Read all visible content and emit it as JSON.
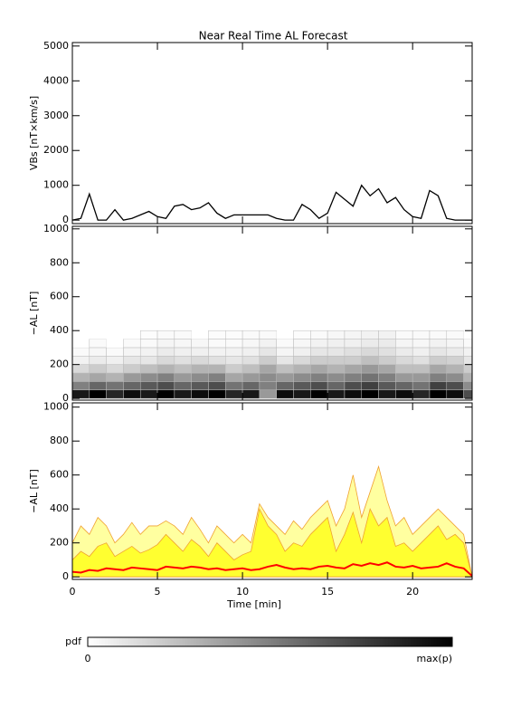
{
  "chart_data": [
    {
      "type": "line",
      "title": "Near Real Time AL Forecast",
      "ylabel": "VBs [nT×km/s]",
      "x": [
        0,
        0.5,
        1,
        1.5,
        2,
        2.5,
        3,
        3.5,
        4,
        4.5,
        5,
        5.5,
        6,
        6.5,
        7,
        7.5,
        8,
        8.5,
        9,
        9.5,
        10,
        10.5,
        11,
        11.5,
        12,
        12.5,
        13,
        13.5,
        14,
        14.5,
        15,
        15.5,
        16,
        16.5,
        17,
        17.5,
        18,
        18.5,
        19,
        19.5,
        20,
        20.5,
        21,
        21.5,
        22,
        22.5,
        23,
        23.5
      ],
      "series": [
        {
          "color": "#000000",
          "values": [
            0,
            50,
            750,
            0,
            0,
            300,
            0,
            50,
            150,
            250,
            100,
            50,
            400,
            450,
            300,
            350,
            500,
            200,
            50,
            150,
            150,
            150,
            150,
            150,
            50,
            0,
            0,
            450,
            300,
            50,
            200,
            800,
            600,
            400,
            1000,
            700,
            900,
            500,
            650,
            300,
            100,
            50,
            850,
            700,
            50,
            0,
            0,
            0
          ]
        }
      ],
      "xlim": [
        0,
        23.5
      ],
      "xticks": [
        0,
        5,
        10,
        15,
        20
      ],
      "ylim": [
        -100,
        5100
      ],
      "yticks": [
        0,
        1000,
        2000,
        3000,
        4000,
        5000
      ]
    },
    {
      "type": "heatmap",
      "ylabel": "−AL [nT]",
      "pdf": {
        "x": [
          0,
          1,
          2,
          3,
          4,
          5,
          6,
          7,
          8,
          9,
          10,
          11,
          12,
          13,
          14,
          15,
          16,
          17,
          18,
          19,
          20,
          21,
          22,
          23,
          23.5
        ],
        "bins": [
          0,
          50,
          100,
          150,
          200,
          250,
          300,
          350,
          400
        ],
        "values": [
          [
            0.9,
            0.5,
            0.3,
            0.15,
            0.05,
            0.02,
            0,
            0
          ],
          [
            1,
            0.6,
            0.35,
            0.2,
            0.08,
            0.03,
            0.02,
            0
          ],
          [
            0.85,
            0.55,
            0.3,
            0.15,
            0.06,
            0.02,
            0,
            0
          ],
          [
            0.95,
            0.6,
            0.4,
            0.2,
            0.1,
            0.04,
            0.02,
            0
          ],
          [
            0.9,
            0.65,
            0.45,
            0.25,
            0.1,
            0.05,
            0.02,
            0.01
          ],
          [
            1,
            0.7,
            0.5,
            0.3,
            0.15,
            0.08,
            0.04,
            0.02
          ],
          [
            0.9,
            0.6,
            0.4,
            0.25,
            0.12,
            0.06,
            0.03,
            0.02
          ],
          [
            0.95,
            0.65,
            0.45,
            0.3,
            0.15,
            0.06,
            0.03,
            0
          ],
          [
            1,
            0.7,
            0.5,
            0.3,
            0.12,
            0.05,
            0.02,
            0.01
          ],
          [
            0.85,
            0.55,
            0.35,
            0.2,
            0.1,
            0.05,
            0.02,
            0.01
          ],
          [
            0.9,
            0.6,
            0.4,
            0.25,
            0.12,
            0.06,
            0.03,
            0.02
          ],
          [
            0.4,
            0.5,
            0.45,
            0.35,
            0.2,
            0.1,
            0.05,
            0.02
          ],
          [
            0.95,
            0.6,
            0.4,
            0.25,
            0.1,
            0.04,
            0.02,
            0
          ],
          [
            0.9,
            0.65,
            0.45,
            0.3,
            0.15,
            0.06,
            0.03,
            0.01
          ],
          [
            1,
            0.7,
            0.5,
            0.35,
            0.2,
            0.1,
            0.05,
            0.02
          ],
          [
            0.9,
            0.6,
            0.45,
            0.3,
            0.2,
            0.1,
            0.06,
            0.03
          ],
          [
            0.95,
            0.7,
            0.5,
            0.35,
            0.2,
            0.12,
            0.06,
            0.04
          ],
          [
            1,
            0.75,
            0.55,
            0.4,
            0.25,
            0.15,
            0.08,
            0.05
          ],
          [
            0.9,
            0.65,
            0.5,
            0.35,
            0.2,
            0.12,
            0.08,
            0.05
          ],
          [
            0.95,
            0.6,
            0.4,
            0.25,
            0.15,
            0.08,
            0.04,
            0.02
          ],
          [
            0.85,
            0.55,
            0.4,
            0.25,
            0.12,
            0.06,
            0.03,
            0.02
          ],
          [
            1,
            0.75,
            0.5,
            0.35,
            0.2,
            0.1,
            0.05,
            0.02
          ],
          [
            0.95,
            0.7,
            0.45,
            0.3,
            0.18,
            0.08,
            0.04,
            0.02
          ],
          [
            0.7,
            0.45,
            0.3,
            0.2,
            0.1,
            0.05,
            0.02,
            0
          ]
        ]
      },
      "xlim": [
        0,
        23.5
      ],
      "xticks": [
        0,
        5,
        10,
        15,
        20
      ],
      "ylim": [
        -10,
        1015
      ],
      "yticks": [
        0,
        200,
        400,
        600,
        800,
        1000
      ]
    },
    {
      "type": "area",
      "ylabel": "−AL [nT]",
      "xlabel": "Time [min]",
      "x": [
        0,
        0.5,
        1,
        1.5,
        2,
        2.5,
        3,
        3.5,
        4,
        4.5,
        5,
        5.5,
        6,
        6.5,
        7,
        7.5,
        8,
        8.5,
        9,
        9.5,
        10,
        10.5,
        11,
        11.5,
        12,
        12.5,
        13,
        13.5,
        14,
        14.5,
        15,
        15.5,
        16,
        16.5,
        17,
        17.5,
        18,
        18.5,
        19,
        19.5,
        20,
        20.5,
        21,
        21.5,
        22,
        22.5,
        23,
        23.5
      ],
      "series": [
        {
          "color": "#ffffa0",
          "edge": "#f0a030",
          "values": [
            200,
            300,
            250,
            350,
            300,
            200,
            250,
            320,
            250,
            300,
            300,
            330,
            300,
            250,
            350,
            280,
            200,
            300,
            250,
            200,
            250,
            200,
            430,
            350,
            300,
            250,
            330,
            280,
            350,
            400,
            450,
            300,
            400,
            600,
            350,
            500,
            650,
            450,
            300,
            350,
            250,
            300,
            350,
            400,
            350,
            300,
            250,
            0
          ]
        },
        {
          "color": "#ffff30",
          "edge": "#f0a030",
          "values": [
            100,
            150,
            120,
            180,
            200,
            120,
            150,
            180,
            140,
            160,
            190,
            250,
            200,
            150,
            220,
            180,
            120,
            200,
            150,
            100,
            130,
            150,
            400,
            300,
            250,
            150,
            200,
            180,
            250,
            300,
            350,
            150,
            250,
            380,
            200,
            400,
            300,
            350,
            180,
            200,
            150,
            200,
            250,
            300,
            220,
            250,
            200,
            0
          ]
        },
        {
          "color": "#ff0000",
          "line": true,
          "values": [
            30,
            25,
            40,
            35,
            50,
            45,
            40,
            55,
            50,
            45,
            40,
            60,
            55,
            50,
            60,
            55,
            45,
            50,
            40,
            45,
            50,
            40,
            45,
            60,
            70,
            55,
            45,
            50,
            45,
            60,
            65,
            55,
            50,
            75,
            65,
            80,
            70,
            85,
            60,
            55,
            65,
            50,
            55,
            60,
            80,
            60,
            50,
            5
          ]
        }
      ],
      "xlim": [
        0,
        23.5
      ],
      "xticks": [
        0,
        5,
        10,
        15,
        20
      ],
      "ylim": [
        -15,
        1025
      ],
      "yticks": [
        0,
        200,
        400,
        600,
        800,
        1000
      ]
    },
    {
      "type": "colorbar",
      "label": "pdf",
      "labels": [
        "0",
        "max(p)"
      ]
    }
  ]
}
